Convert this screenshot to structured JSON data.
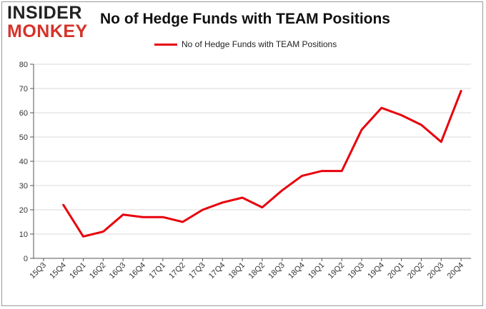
{
  "brand": {
    "line1": "INSIDER",
    "line2": "MONKEY"
  },
  "chart_data": {
    "type": "line",
    "title": "No of Hedge Funds with TEAM Positions",
    "xlabel": "",
    "ylabel": "",
    "categories": [
      "15Q3",
      "15Q4",
      "16Q1",
      "16Q2",
      "16Q3",
      "16Q4",
      "17Q1",
      "17Q2",
      "17Q3",
      "17Q4",
      "18Q1",
      "18Q2",
      "18Q3",
      "18Q4",
      "19Q1",
      "19Q2",
      "19Q3",
      "19Q4",
      "20Q1",
      "20Q2",
      "20Q3",
      "20Q4"
    ],
    "series": [
      {
        "name": "No of Hedge Funds with TEAM Positions",
        "color": "#e8000b",
        "values": [
          null,
          22,
          9,
          11,
          18,
          17,
          17,
          15,
          20,
          23,
          25,
          21,
          28,
          34,
          36,
          36,
          53,
          62,
          59,
          55,
          48,
          69
        ]
      }
    ],
    "ylim": [
      0,
      80
    ],
    "yticks": [
      0,
      10,
      20,
      30,
      40,
      50,
      60,
      70,
      80
    ],
    "grid": true,
    "legend_position": "top-center"
  }
}
